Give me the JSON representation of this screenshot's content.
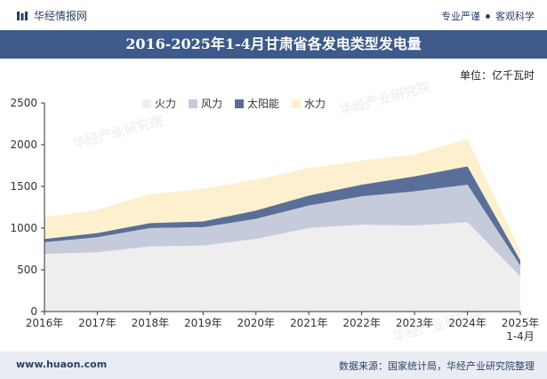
{
  "header": {
    "brand": "华经情报网",
    "slogan_1": "专业严谨",
    "slogan_2": "客观科学"
  },
  "title": "2016-2025年1-4月甘肃省各发电类型发电量",
  "unit_label": "单位：亿千瓦时",
  "watermark": "华经产业研究院",
  "footer": {
    "site": "www.huaon.com",
    "source": "数据来源：国家统计局，华经产业研究院整理"
  },
  "colors": {
    "fire": "#eeeeee",
    "wind": "#c5cbda",
    "solar": "#5a6f98",
    "hydro": "#fcf0ce",
    "header": "#3d5a8a"
  },
  "chart_data": {
    "type": "area",
    "stacked": true,
    "categories": [
      "2016年",
      "2017年",
      "2018年",
      "2019年",
      "2020年",
      "2021年",
      "2022年",
      "2023年",
      "2024年",
      "2025年\n1-4月"
    ],
    "series": [
      {
        "name": "火力",
        "values": [
          690,
          710,
          780,
          790,
          870,
          1000,
          1040,
          1030,
          1070,
          420
        ]
      },
      {
        "name": "风力",
        "values": [
          140,
          180,
          220,
          220,
          240,
          270,
          340,
          410,
          450,
          130
        ]
      },
      {
        "name": "太阳能",
        "values": [
          40,
          50,
          60,
          70,
          100,
          120,
          140,
          180,
          220,
          60
        ]
      },
      {
        "name": "水力",
        "values": [
          260,
          280,
          350,
          390,
          370,
          330,
          290,
          260,
          330,
          110
        ]
      }
    ],
    "ylim": [
      0,
      2500
    ],
    "yticks": [
      0,
      500,
      1000,
      1500,
      2000,
      2500
    ],
    "grid": false,
    "legend": "top"
  }
}
